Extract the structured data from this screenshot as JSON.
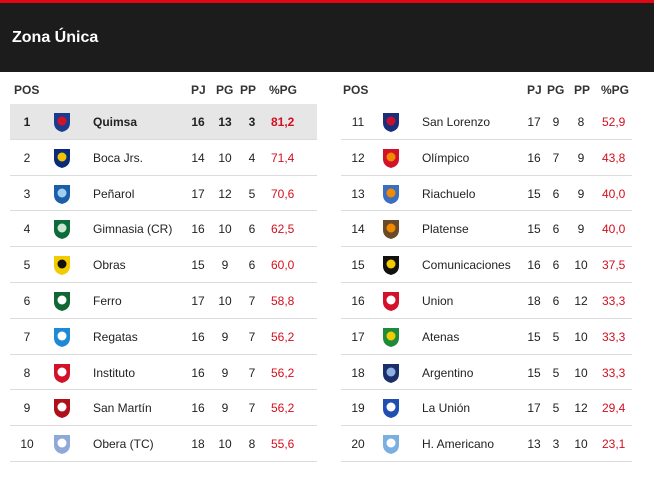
{
  "header": {
    "title": "Zona Única"
  },
  "columns": {
    "pos": "POS",
    "pj": "PJ",
    "pg": "PG",
    "pp": "PP",
    "pct": "%PG"
  },
  "left_rows": [
    {
      "pos": "1",
      "team": "Quimsa",
      "pj": "16",
      "pg": "13",
      "pp": "3",
      "pct": "81,2",
      "logo": "quimsa-logo",
      "color": "#1d3b8c",
      "color2": "#d3122a",
      "highlight": true
    },
    {
      "pos": "2",
      "team": "Boca Jrs.",
      "pj": "14",
      "pg": "10",
      "pp": "4",
      "pct": "71,4",
      "logo": "boca-logo",
      "color": "#0a2a7a",
      "color2": "#f2c400"
    },
    {
      "pos": "3",
      "team": "Peñarol",
      "pj": "17",
      "pg": "12",
      "pp": "5",
      "pct": "70,6",
      "logo": "penarol-logo",
      "color": "#1b5fa8",
      "color2": "#9ed0f0"
    },
    {
      "pos": "4",
      "team": "Gimnasia (CR)",
      "pj": "16",
      "pg": "10",
      "pp": "6",
      "pct": "62,5",
      "logo": "gimnasia-logo",
      "color": "#0d6b3a",
      "color2": "#c8e6d2"
    },
    {
      "pos": "5",
      "team": "Obras",
      "pj": "15",
      "pg": "9",
      "pp": "6",
      "pct": "60,0",
      "logo": "obras-logo",
      "color": "#f2cc00",
      "color2": "#111111"
    },
    {
      "pos": "6",
      "team": "Ferro",
      "pj": "17",
      "pg": "10",
      "pp": "7",
      "pct": "58,8",
      "logo": "ferro-logo",
      "color": "#116633",
      "color2": "#ffffff"
    },
    {
      "pos": "7",
      "team": "Regatas",
      "pj": "16",
      "pg": "9",
      "pp": "7",
      "pct": "56,2",
      "logo": "regatas-logo",
      "color": "#1e8ad6",
      "color2": "#ffffff"
    },
    {
      "pos": "8",
      "team": "Instituto",
      "pj": "16",
      "pg": "9",
      "pp": "7",
      "pct": "56,2",
      "logo": "instituto-logo",
      "color": "#d3122a",
      "color2": "#ffffff"
    },
    {
      "pos": "9",
      "team": "San Martín",
      "pj": "16",
      "pg": "9",
      "pp": "7",
      "pct": "56,2",
      "logo": "sanmartin-logo",
      "color": "#b0101c",
      "color2": "#ffffff"
    },
    {
      "pos": "10",
      "team": "Obera (TC)",
      "pj": "18",
      "pg": "10",
      "pp": "8",
      "pct": "55,6",
      "logo": "obera-logo",
      "color": "#8fa8d8",
      "color2": "#ffffff"
    }
  ],
  "right_rows": [
    {
      "pos": "11",
      "team": "San Lorenzo",
      "pj": "17",
      "pg": "9",
      "pp": "8",
      "pct": "52,9",
      "logo": "sanlorenzo-logo",
      "color": "#1a2f7a",
      "color2": "#c8102e"
    },
    {
      "pos": "12",
      "team": "Olímpico",
      "pj": "16",
      "pg": "7",
      "pp": "9",
      "pct": "43,8",
      "logo": "olimpico-logo",
      "color": "#d3122a",
      "color2": "#f08a00"
    },
    {
      "pos": "13",
      "team": "Riachuelo",
      "pj": "15",
      "pg": "6",
      "pp": "9",
      "pct": "40,0",
      "logo": "riachuelo-logo",
      "color": "#3a6fc0",
      "color2": "#f08a00"
    },
    {
      "pos": "14",
      "team": "Platense",
      "pj": "15",
      "pg": "6",
      "pp": "9",
      "pct": "40,0",
      "logo": "platense-logo",
      "color": "#6b4a2a",
      "color2": "#f08a00"
    },
    {
      "pos": "15",
      "team": "Comunicaciones",
      "pj": "16",
      "pg": "6",
      "pp": "10",
      "pct": "37,5",
      "logo": "comunicaciones-logo",
      "color": "#111111",
      "color2": "#f2cc00"
    },
    {
      "pos": "16",
      "team": "Union",
      "pj": "18",
      "pg": "6",
      "pp": "12",
      "pct": "33,3",
      "logo": "union-logo",
      "color": "#d3122a",
      "color2": "#ffffff"
    },
    {
      "pos": "17",
      "team": "Atenas",
      "pj": "15",
      "pg": "5",
      "pp": "10",
      "pct": "33,3",
      "logo": "atenas-logo",
      "color": "#1f8a3a",
      "color2": "#f2cc00"
    },
    {
      "pos": "18",
      "team": "Argentino",
      "pj": "15",
      "pg": "5",
      "pp": "10",
      "pct": "33,3",
      "logo": "argentino-logo",
      "color": "#1a2f6a",
      "color2": "#8fb0e0"
    },
    {
      "pos": "19",
      "team": "La Unión",
      "pj": "17",
      "pg": "5",
      "pp": "12",
      "pct": "29,4",
      "logo": "launion-logo",
      "color": "#1f4fb0",
      "color2": "#ffffff"
    },
    {
      "pos": "20",
      "team": "H. Americano",
      "pj": "13",
      "pg": "3",
      "pp": "10",
      "pct": "23,1",
      "logo": "hamericano-logo",
      "color": "#7ab0e0",
      "color2": "#ffffff"
    }
  ]
}
